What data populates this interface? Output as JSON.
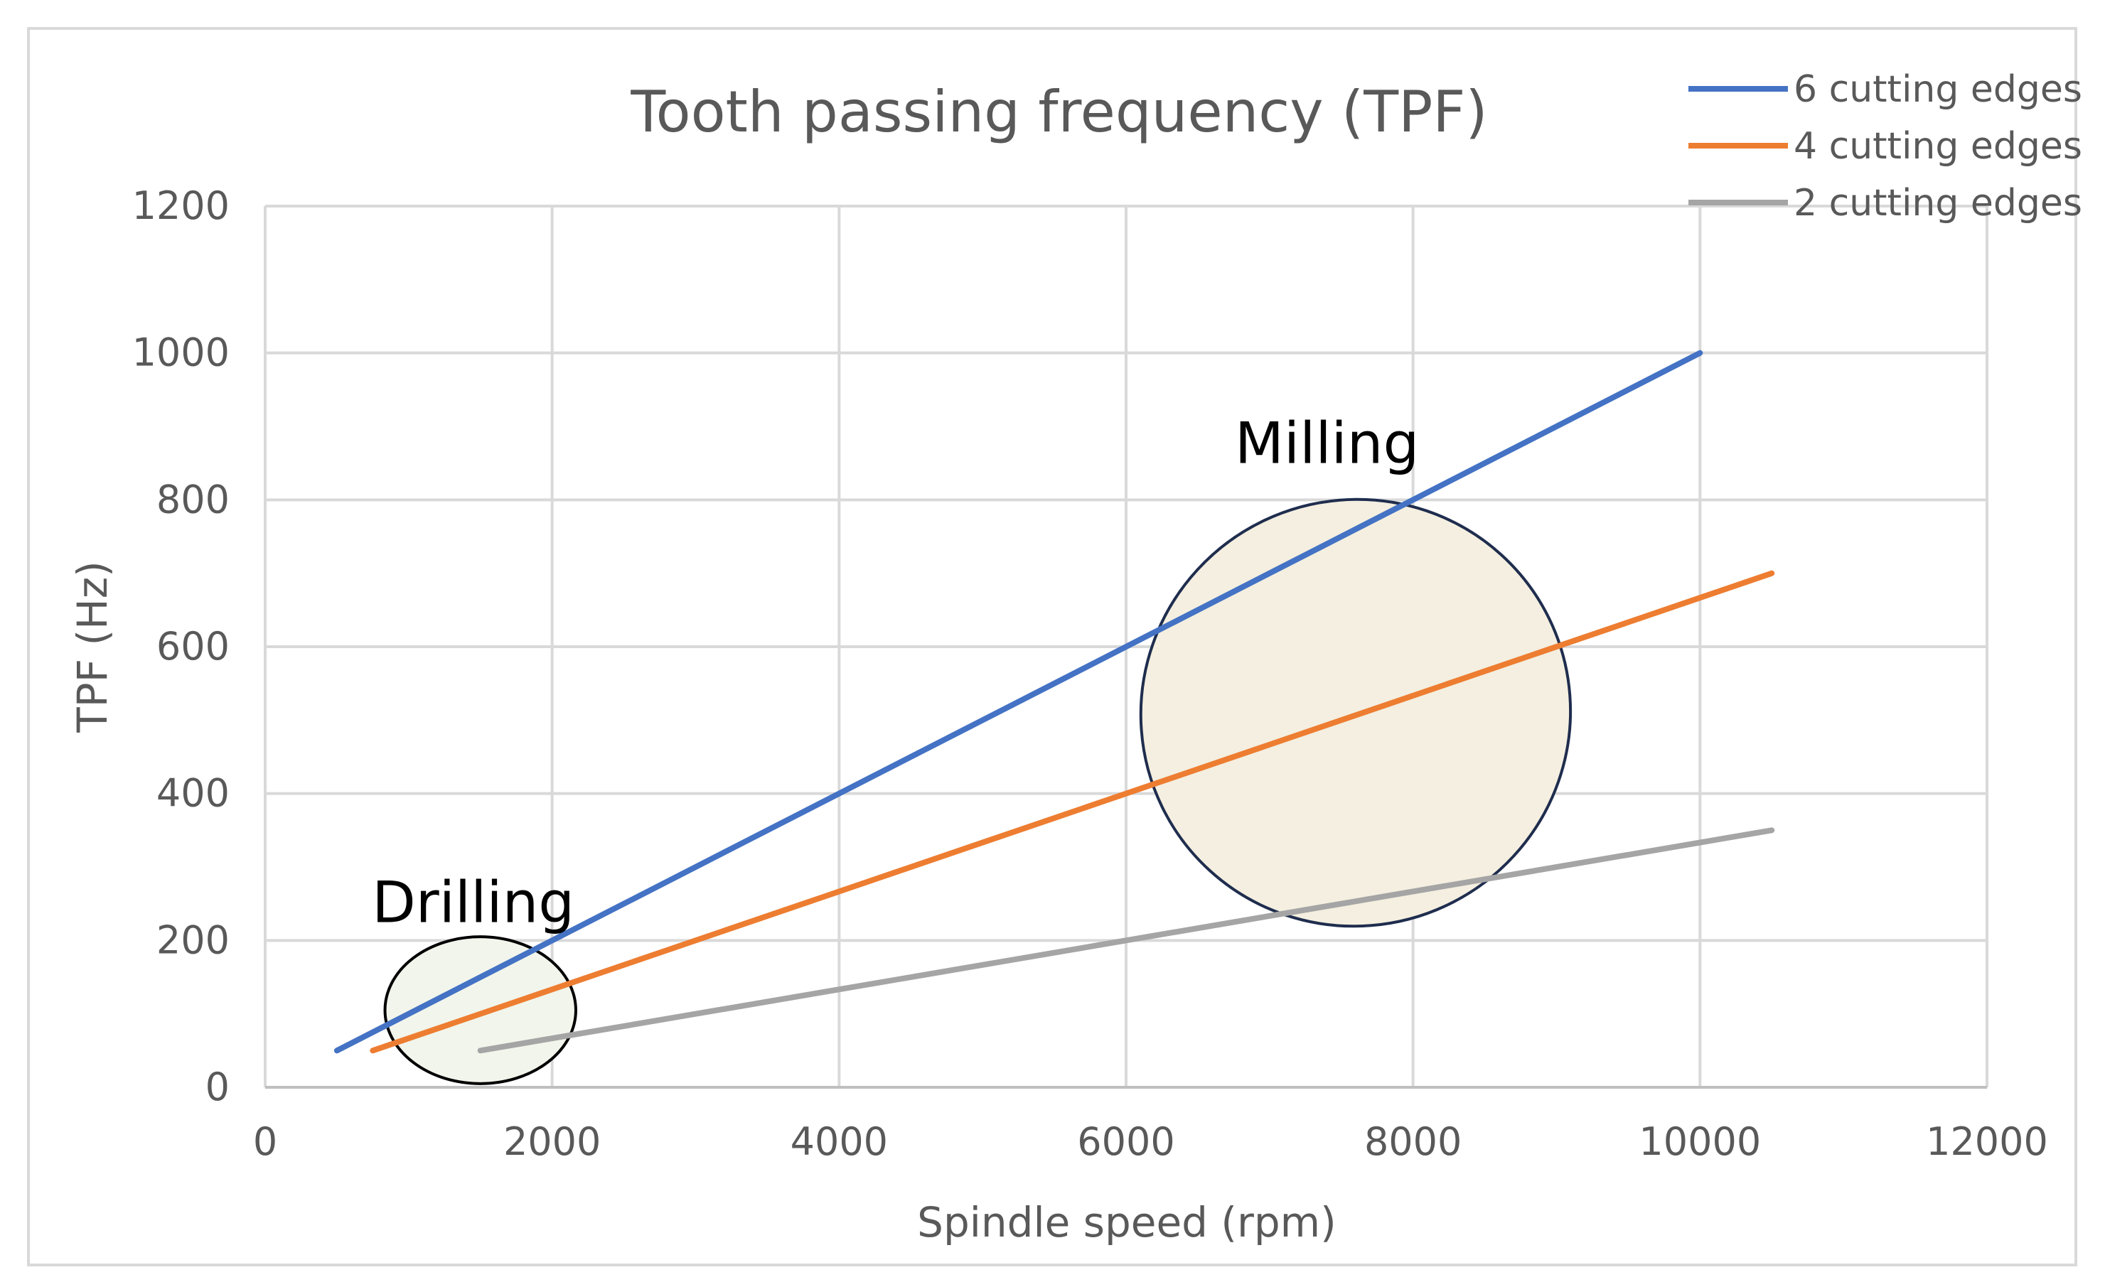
{
  "chart_data": {
    "type": "line",
    "title": "Tooth passing frequency (TPF)",
    "xlabel": "Spindle speed (rpm)",
    "ylabel": "TPF (Hz)",
    "xlim": [
      0,
      12000
    ],
    "ylim": [
      0,
      1200
    ],
    "xticks": [
      0,
      2000,
      4000,
      6000,
      8000,
      10000,
      12000
    ],
    "yticks": [
      0,
      200,
      400,
      600,
      800,
      1000,
      1200
    ],
    "xtick_labels": [
      "0",
      "2000",
      "4000",
      "6000",
      "8000",
      "10000",
      "12000"
    ],
    "ytick_labels": [
      "0",
      "200",
      "400",
      "600",
      "800",
      "1000",
      "1200"
    ],
    "grid": true,
    "legend_position": "top-right",
    "series": [
      {
        "name": "6 cutting edges",
        "color": "#4472C4",
        "x": [
          500,
          10000
        ],
        "y": [
          50,
          1000
        ]
      },
      {
        "name": "4 cutting edges",
        "color": "#ED7D31",
        "x": [
          750,
          10500
        ],
        "y": [
          50,
          700
        ]
      },
      {
        "name": "2 cutting edges",
        "color": "#A5A5A5",
        "x": [
          1500,
          10500
        ],
        "y": [
          50,
          350
        ]
      }
    ],
    "annotations": [
      {
        "label": "Drilling",
        "center": [
          1500,
          105
        ],
        "radius_x": 1330,
        "radius_y": 100,
        "rotation_deg": 0,
        "label_at": [
          1450,
          225
        ],
        "fill": "#F2F5EB",
        "stroke": "#000000"
      },
      {
        "label": "Milling",
        "center": [
          7600,
          510
        ],
        "radius_x": 3000,
        "radius_y": 290,
        "rotation_deg": -26,
        "label_at": [
          7400,
          850
        ],
        "fill": "#F4EFE0",
        "stroke": "#1F2D4E"
      }
    ]
  }
}
